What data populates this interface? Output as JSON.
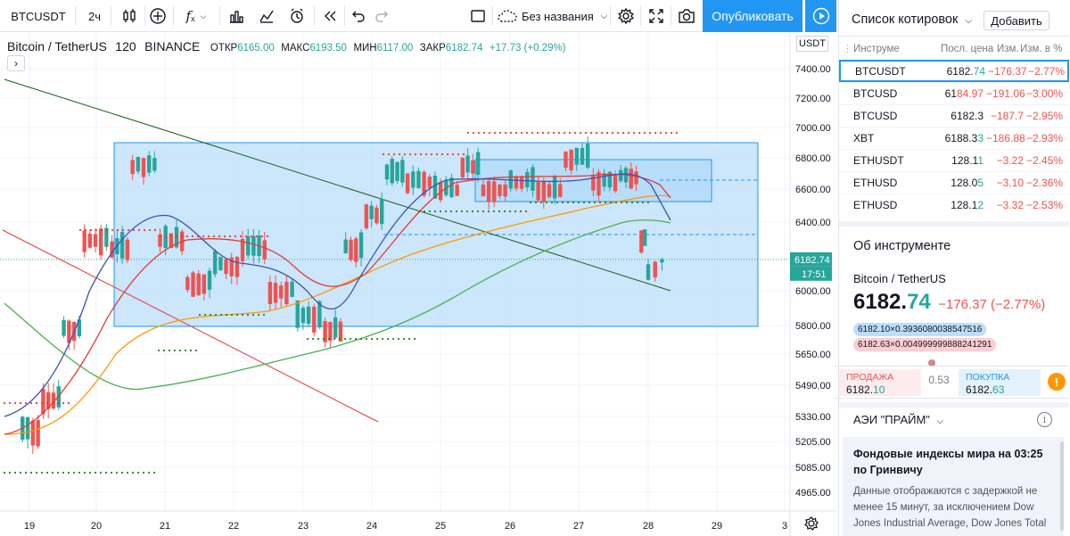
{
  "toolbar": {
    "symbol": "BTCUSDT",
    "interval": "2ч",
    "layout_name": "Без названия",
    "publish_label": "Опубликовать",
    "icons": [
      "candles-icon",
      "add-indicator-icon",
      "fx-icon",
      "templates-icon",
      "compare-icon",
      "alert-icon",
      "replay-icon",
      "undo-icon",
      "redo-icon",
      "fullscreen-frame-icon",
      "cloud-icon",
      "settings-icon",
      "expand-icon",
      "camera-icon",
      "play-icon"
    ]
  },
  "legend": {
    "title": "Bitcoin / TetherUS",
    "interval": "120",
    "exchange": "BINANCE",
    "open_label": "ОТКР",
    "open": "6165.00",
    "high_label": "МАКС",
    "high": "6193.50",
    "low_label": "МИН",
    "low": "6117.00",
    "close_label": "ЗАКР",
    "close": "6182.74",
    "change": "+17.73 (+0.29%)"
  },
  "chart_data": {
    "type": "candlestick",
    "symbol": "BTCUSDT",
    "price_axis": {
      "currency": "USDT",
      "ticks": [
        "7400.00",
        "7200.00",
        "7000.00",
        "6800.00",
        "6600.00",
        "6400.00",
        "6000.00",
        "5800.00",
        "5650.00",
        "5490.00",
        "5330.00",
        "5205.00",
        "5085.00",
        "4965.00"
      ],
      "last_price": "6182.74",
      "countdown": "17:51"
    },
    "time_axis": {
      "ticks": [
        "19",
        "20",
        "21",
        "22",
        "23",
        "24",
        "25",
        "26",
        "27",
        "28",
        "29",
        "3"
      ]
    },
    "ohlc_last": {
      "open": 6165.0,
      "high": 6193.5,
      "low": 6117.0,
      "close": 6182.74
    },
    "candles_approx": [
      {
        "day": 18.9,
        "o": 5300,
        "h": 5420,
        "l": 5150,
        "c": 5260
      },
      {
        "day": 19.2,
        "o": 5260,
        "h": 5450,
        "l": 5230,
        "c": 5420
      },
      {
        "day": 19.5,
        "o": 5420,
        "h": 5800,
        "l": 5400,
        "c": 5780
      },
      {
        "day": 19.8,
        "o": 5780,
        "h": 6350,
        "l": 5760,
        "c": 6300
      },
      {
        "day": 20.2,
        "o": 6300,
        "h": 6500,
        "l": 6100,
        "c": 6250
      },
      {
        "day": 20.5,
        "o": 6250,
        "h": 6870,
        "l": 6200,
        "c": 6750
      },
      {
        "day": 20.9,
        "o": 6750,
        "h": 6760,
        "l": 6200,
        "c": 6300
      },
      {
        "day": 21.3,
        "o": 6300,
        "h": 6330,
        "l": 5900,
        "c": 6050
      },
      {
        "day": 21.7,
        "o": 6050,
        "h": 6300,
        "l": 5950,
        "c": 6150
      },
      {
        "day": 22.1,
        "o": 6150,
        "h": 6350,
        "l": 6100,
        "c": 6250
      },
      {
        "day": 22.5,
        "o": 6250,
        "h": 6300,
        "l": 5950,
        "c": 6000
      },
      {
        "day": 22.9,
        "o": 6000,
        "h": 6050,
        "l": 5680,
        "c": 5850
      },
      {
        "day": 23.3,
        "o": 5850,
        "h": 6000,
        "l": 5700,
        "c": 5780
      },
      {
        "day": 23.6,
        "o": 5780,
        "h": 6300,
        "l": 5770,
        "c": 6250
      },
      {
        "day": 23.9,
        "o": 6250,
        "h": 6500,
        "l": 6200,
        "c": 6450
      },
      {
        "day": 24.2,
        "o": 6450,
        "h": 6750,
        "l": 6400,
        "c": 6700
      },
      {
        "day": 24.5,
        "o": 6700,
        "h": 6800,
        "l": 6550,
        "c": 6650
      },
      {
        "day": 24.9,
        "o": 6650,
        "h": 6750,
        "l": 6550,
        "c": 6600
      },
      {
        "day": 25.3,
        "o": 6600,
        "h": 6950,
        "l": 6550,
        "c": 6750
      },
      {
        "day": 25.6,
        "o": 6750,
        "h": 6800,
        "l": 6550,
        "c": 6600
      },
      {
        "day": 26.0,
        "o": 6600,
        "h": 6700,
        "l": 6570,
        "c": 6650
      },
      {
        "day": 26.4,
        "o": 6650,
        "h": 6700,
        "l": 6580,
        "c": 6600
      },
      {
        "day": 26.8,
        "o": 6600,
        "h": 6850,
        "l": 6580,
        "c": 6800
      },
      {
        "day": 27.2,
        "o": 6800,
        "h": 6820,
        "l": 6600,
        "c": 6650
      },
      {
        "day": 27.6,
        "o": 6650,
        "h": 6700,
        "l": 6600,
        "c": 6680
      },
      {
        "day": 27.9,
        "o": 6680,
        "h": 6700,
        "l": 6250,
        "c": 6300
      },
      {
        "day": 28.0,
        "o": 6300,
        "h": 6330,
        "l": 6050,
        "c": 6100
      },
      {
        "day": 28.2,
        "o": 6165,
        "h": 6193.5,
        "l": 6117,
        "c": 6182.74
      }
    ],
    "ylim": [
      4900,
      7520
    ],
    "xlim": [
      18.6,
      29.1
    ],
    "colors": {
      "up": "#26a69a",
      "down": "#ef5350",
      "box_fill": "#bbdefb",
      "box_line": "#2196f3"
    }
  },
  "watchlist": {
    "title": "Список котировок",
    "add_label": "Добавить",
    "headers": {
      "symbol": "Инструме",
      "last": "Посл. цена",
      "chg": "Изм.",
      "chg_pct": "Изм. в %"
    },
    "rows": [
      {
        "symbol": "BTCUSDT",
        "price_main": "6182.",
        "price_tail": "74",
        "tail_color": "green",
        "chg": "−176.37",
        "chg_pct": "−2.77%"
      },
      {
        "symbol": "BTCUSD",
        "price_main": "61",
        "price_tail": "84.97",
        "tail_color": "red",
        "chg": "−191.06",
        "chg_pct": "−3.00%"
      },
      {
        "symbol": "BTCUSD",
        "price_main": "6182.3",
        "price_tail": "",
        "tail_color": "none",
        "chg": "−187.7",
        "chg_pct": "−2.95%"
      },
      {
        "symbol": "XBT",
        "price_main": "6188.3",
        "price_tail": "3",
        "tail_color": "green",
        "chg": "−186.88",
        "chg_pct": "−2.93%"
      },
      {
        "symbol": "ETHUSDT",
        "price_main": "128.1",
        "price_tail": "1",
        "tail_color": "green",
        "chg": "−3.22",
        "chg_pct": "−2.45%"
      },
      {
        "symbol": "ETHUSD",
        "price_main": "128.0",
        "price_tail": "5",
        "tail_color": "green",
        "chg": "−3.10",
        "chg_pct": "−2.36%"
      },
      {
        "symbol": "ETHUSD",
        "price_main": "128.1",
        "price_tail": "2",
        "tail_color": "green",
        "chg": "−3.32",
        "chg_pct": "−2.53%"
      }
    ]
  },
  "details": {
    "title": "Об инструменте",
    "name": "Bitcoin / TetherUS",
    "price_main": "6182.",
    "price_tail": "74",
    "change": "−176.37 (−2.77%)",
    "bid_chip": "6182.10×0.3936080038547516",
    "ask_chip": "6182.63×0.004999999888241291",
    "sell_label": "ПРОДАЖА",
    "sell_main": "6182.",
    "sell_tail": "10",
    "spread": "0.53",
    "buy_label": "ПОКУПКА",
    "buy_main": "6182.",
    "buy_tail": "63"
  },
  "news": {
    "source": "АЭИ \"ПРАЙМ\"",
    "headline": "Фондовые индексы мира на 03:25 по Гринвичу",
    "body": "Данные отображаются с задержкой не менее 15 минут, за исключением Dow Jones Industrial Average, Dow Jones Total"
  }
}
